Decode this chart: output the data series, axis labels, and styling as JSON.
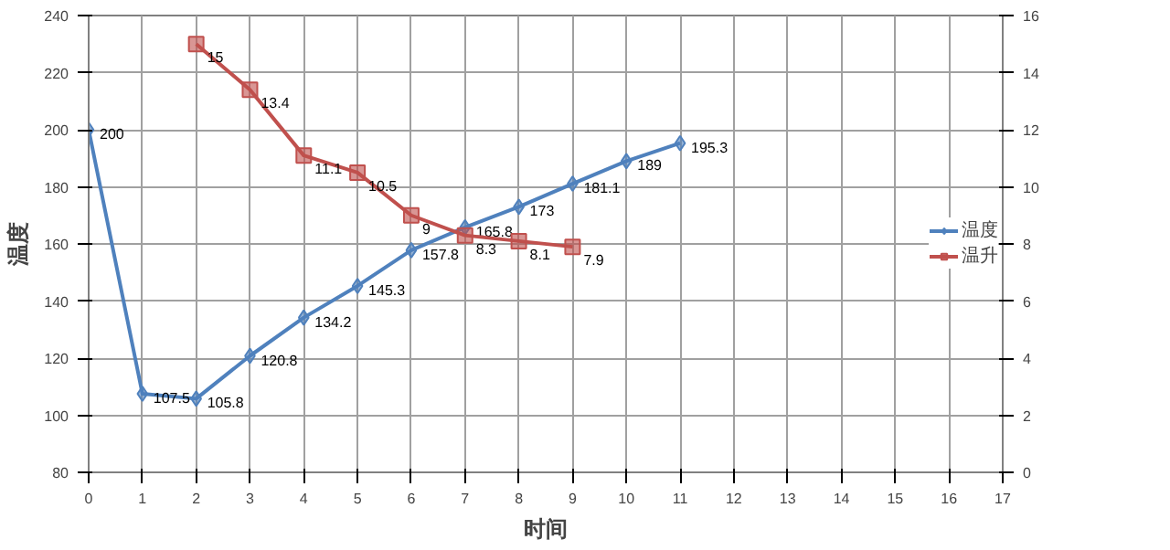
{
  "chart_data": {
    "type": "line",
    "xlabel": "时间",
    "ylabel": "温度",
    "x": [
      0,
      1,
      2,
      3,
      4,
      5,
      6,
      7,
      8,
      9,
      10,
      11
    ],
    "series": [
      {
        "name": "温度",
        "color": "#4f81bd",
        "values": [
          200,
          107.5,
          105.8,
          120.8,
          134.2,
          145.3,
          157.8,
          165.8,
          173,
          181.1,
          189,
          195.3
        ]
      },
      {
        "name": "温升",
        "color": "#c0504d",
        "axis": "y2",
        "marker": "square",
        "values": [
          null,
          null,
          15,
          13.4,
          11.1,
          10.5,
          9,
          8.3,
          8.1,
          7.9,
          null,
          null
        ]
      }
    ],
    "xlim": [
      0,
      17
    ],
    "xticks": [
      0,
      1,
      2,
      3,
      4,
      5,
      6,
      7,
      8,
      9,
      10,
      11,
      12,
      13,
      14,
      15,
      16,
      17
    ],
    "ylim": [
      80,
      240
    ],
    "yticks": [
      80,
      100,
      120,
      140,
      160,
      180,
      200,
      220,
      240
    ],
    "y2lim": [
      0,
      16
    ],
    "y2ticks": [
      0,
      2,
      4,
      6,
      8,
      10,
      12,
      14,
      16
    ],
    "grid": true,
    "legend": "right",
    "marker": "diamond",
    "data_labels": true
  }
}
